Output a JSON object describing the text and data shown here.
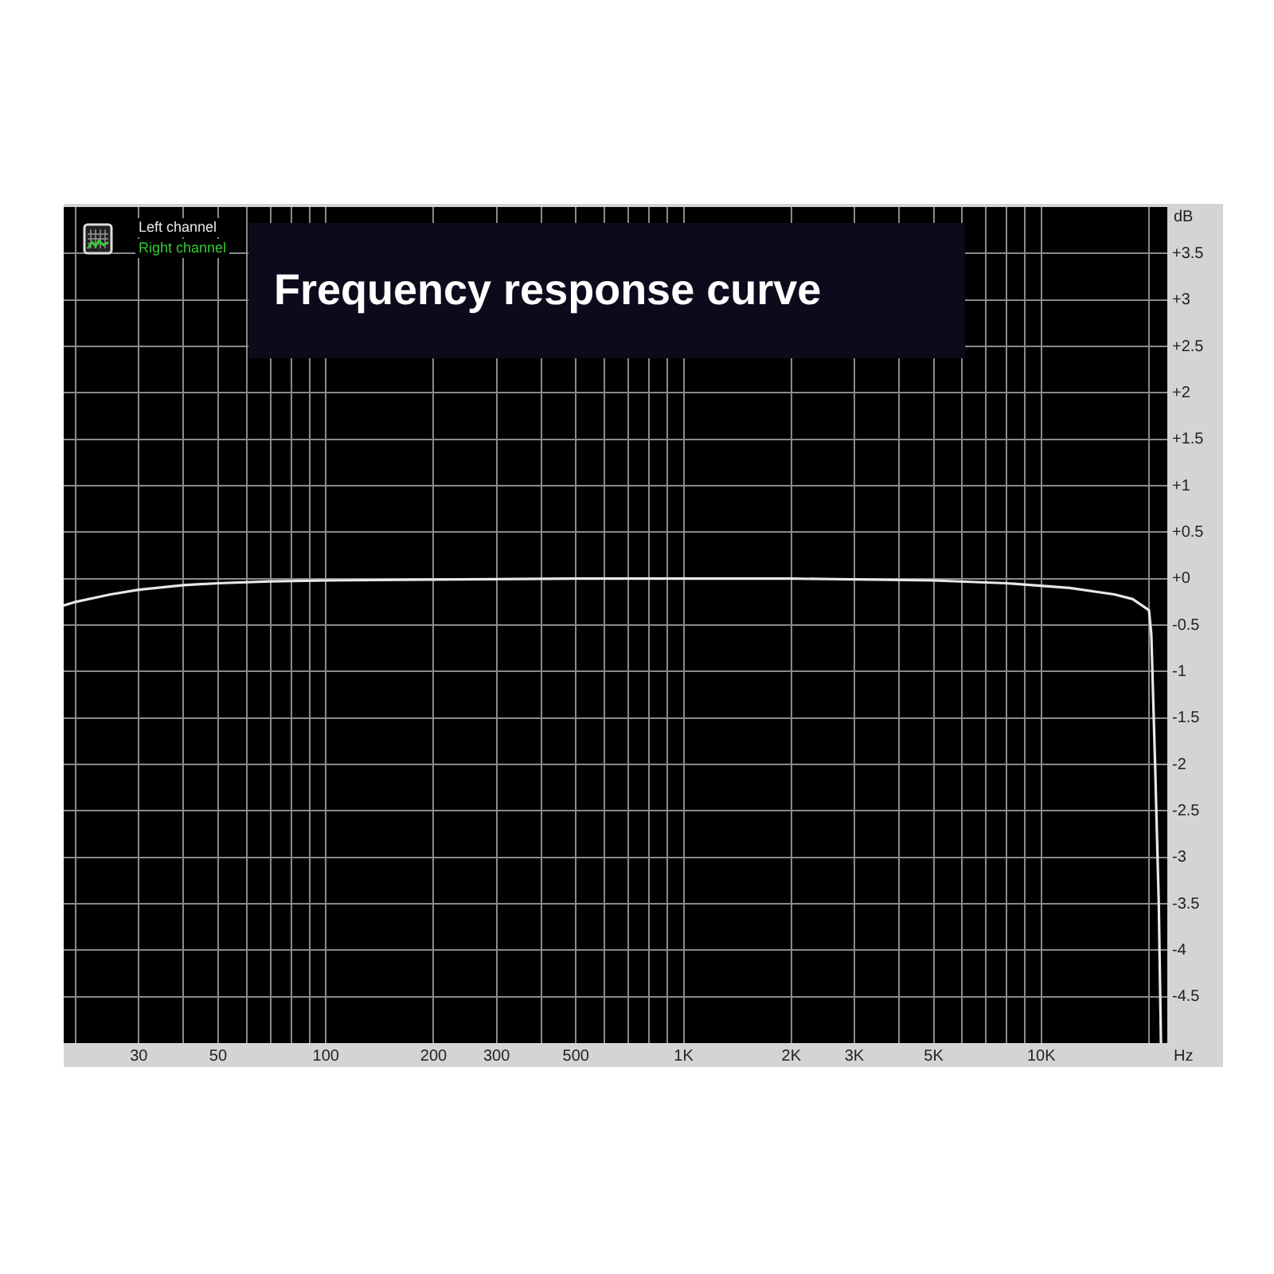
{
  "chart_data": {
    "type": "line",
    "title": "Frequency response curve",
    "xlabel": "Hz",
    "ylabel": "dB",
    "log": "x",
    "grid": true,
    "legend": "top left",
    "marker": "none",
    "line_style": "solid",
    "xlim": [
      18.5,
      22500
    ],
    "ylim": [
      -5,
      4
    ],
    "xticks": [
      {
        "value": 20,
        "label": null
      },
      {
        "value": 30,
        "label": "30"
      },
      {
        "value": 40,
        "label": null
      },
      {
        "value": 50,
        "label": "50"
      },
      {
        "value": 60,
        "label": null
      },
      {
        "value": 70,
        "label": null
      },
      {
        "value": 80,
        "label": null
      },
      {
        "value": 90,
        "label": null
      },
      {
        "value": 100,
        "label": "100"
      },
      {
        "value": 200,
        "label": "200"
      },
      {
        "value": 300,
        "label": "300"
      },
      {
        "value": 400,
        "label": null
      },
      {
        "value": 500,
        "label": "500"
      },
      {
        "value": 600,
        "label": null
      },
      {
        "value": 700,
        "label": null
      },
      {
        "value": 800,
        "label": null
      },
      {
        "value": 900,
        "label": null
      },
      {
        "value": 1000,
        "label": "1K"
      },
      {
        "value": 2000,
        "label": "2K"
      },
      {
        "value": 3000,
        "label": "3K"
      },
      {
        "value": 4000,
        "label": null
      },
      {
        "value": 5000,
        "label": "5K"
      },
      {
        "value": 6000,
        "label": null
      },
      {
        "value": 7000,
        "label": null
      },
      {
        "value": 8000,
        "label": null
      },
      {
        "value": 9000,
        "label": null
      },
      {
        "value": 10000,
        "label": "10K"
      },
      {
        "value": 20000,
        "label": null
      }
    ],
    "yticks": [
      {
        "value": 3.5,
        "label": "+3.5"
      },
      {
        "value": 3,
        "label": "+3"
      },
      {
        "value": 2.5,
        "label": "+2.5"
      },
      {
        "value": 2,
        "label": "+2"
      },
      {
        "value": 1.5,
        "label": "+1.5"
      },
      {
        "value": 1,
        "label": "+1"
      },
      {
        "value": 0.5,
        "label": "+0.5"
      },
      {
        "value": 0,
        "label": "+0"
      },
      -0.5,
      -1,
      -1.5,
      -2,
      -2.5,
      -3,
      -3.5,
      -4,
      -4.5
    ],
    "x": [
      18.5,
      20,
      25,
      30,
      40,
      50,
      70,
      100,
      200,
      500,
      1000,
      2000,
      5000,
      8000,
      12000,
      16000,
      18000,
      20000,
      20300,
      20800,
      21300,
      21600
    ],
    "series": [
      {
        "name": "Left channel",
        "color": "#e8e8e8",
        "values": [
          -0.29,
          -0.25,
          -0.17,
          -0.12,
          -0.07,
          -0.05,
          -0.03,
          -0.02,
          -0.01,
          0,
          0,
          0,
          -0.02,
          -0.05,
          -0.1,
          -0.17,
          -0.22,
          -0.34,
          -0.6,
          -2,
          -3.5,
          -5
        ]
      },
      {
        "name": "Right channel",
        "color": "#33cc33",
        "values": [
          null,
          null,
          null,
          null,
          null,
          null,
          null,
          null,
          null,
          null,
          null,
          null,
          null,
          null,
          null,
          null,
          null,
          null,
          null,
          null,
          null,
          null
        ]
      }
    ]
  }
}
